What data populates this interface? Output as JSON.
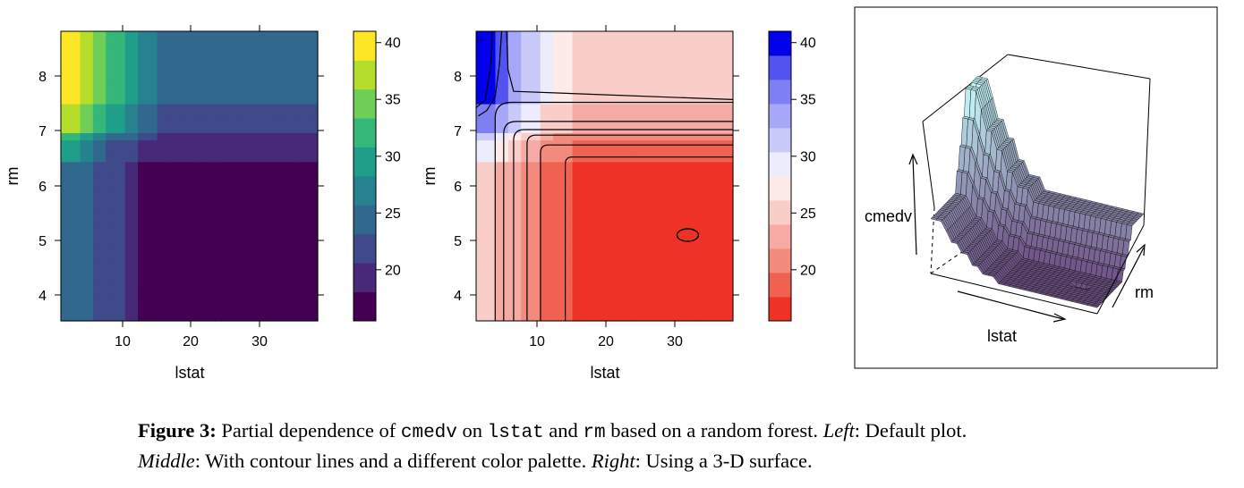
{
  "chart_data": [
    {
      "type": "heatmap",
      "variant": "default",
      "xlabel": "lstat",
      "ylabel": "rm",
      "xlim": [
        1.7,
        38
      ],
      "ylim": [
        3.5,
        8.8
      ],
      "x_ticks": [
        "10",
        "20",
        "30"
      ],
      "y_ticks": [
        "4",
        "5",
        "6",
        "7",
        "8"
      ],
      "colorbar_ticks": [
        "20",
        "25",
        "30",
        "35",
        "40"
      ],
      "colorbar_range": [
        15.5,
        41
      ],
      "palette": [
        "#440154",
        "#482878",
        "#3e4a89",
        "#31688e",
        "#26828e",
        "#1f9e89",
        "#35b779",
        "#6ece58",
        "#b5de2b",
        "#fde725"
      ],
      "hotspot": {
        "lstat": 31.5,
        "rm": 5.05,
        "cmedv": 16.5
      }
    },
    {
      "type": "heatmap",
      "variant": "contour",
      "xlabel": "lstat",
      "ylabel": "rm",
      "xlim": [
        1.7,
        38
      ],
      "ylim": [
        3.5,
        8.8
      ],
      "x_ticks": [
        "10",
        "20",
        "30"
      ],
      "y_ticks": [
        "4",
        "5",
        "6",
        "7",
        "8"
      ],
      "colorbar_ticks": [
        "20",
        "25",
        "30",
        "35",
        "40"
      ],
      "colorbar_range": [
        15.5,
        41
      ],
      "palette": [
        "#ee3326",
        "#f06151",
        "#f38a7e",
        "#f5aba3",
        "#f9cdc8",
        "#fcebe8",
        "#ececfc",
        "#cacafa",
        "#a7a7f7",
        "#7f7ff4",
        "#5353f0",
        "#0000eb"
      ],
      "contour_line_color": "#000000"
    },
    {
      "type": "surface",
      "xlabel": "lstat",
      "ylabel": "rm",
      "zlabel": "cmedv",
      "palette_low": "#5a2a6a",
      "palette_high": "#c8ffff"
    }
  ],
  "caption": {
    "fig_label": "Figure 3:",
    "t1": " Partial dependence of ",
    "code1": "cmedv",
    "t2": " on ",
    "code2": "lstat",
    "t3": " and ",
    "code3": "rm",
    "t4": " based on a random forest. ",
    "left_label": "Left",
    "t5": ": Default plot.",
    "middle_label": "Middle",
    "t6": ": With contour lines and a different color palette. ",
    "right_label": "Right",
    "t7": ": Using a 3-D surface."
  }
}
